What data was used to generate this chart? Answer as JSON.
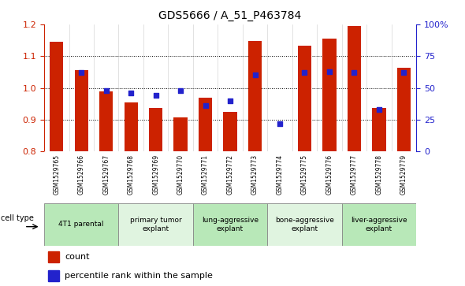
{
  "title": "GDS5666 / A_51_P463784",
  "samples": [
    "GSM1529765",
    "GSM1529766",
    "GSM1529767",
    "GSM1529768",
    "GSM1529769",
    "GSM1529770",
    "GSM1529771",
    "GSM1529772",
    "GSM1529773",
    "GSM1529774",
    "GSM1529775",
    "GSM1529776",
    "GSM1529777",
    "GSM1529778",
    "GSM1529779"
  ],
  "count_values": [
    1.145,
    1.055,
    0.988,
    0.955,
    0.938,
    0.908,
    0.97,
    0.924,
    1.148,
    0.802,
    1.132,
    1.155,
    1.195,
    0.937,
    1.063
  ],
  "percentile_values": [
    null,
    62,
    48,
    46,
    44,
    48,
    36,
    40,
    60,
    22,
    62,
    63,
    62,
    33,
    62
  ],
  "cell_types": [
    {
      "label": "4T1 parental",
      "start": 0,
      "end": 3,
      "color": "#b8e8b8"
    },
    {
      "label": "primary tumor\nexplant",
      "start": 3,
      "end": 6,
      "color": "#e0f4e0"
    },
    {
      "label": "lung-aggressive\nexplant",
      "start": 6,
      "end": 9,
      "color": "#b8e8b8"
    },
    {
      "label": "bone-aggressive\nexplant",
      "start": 9,
      "end": 12,
      "color": "#e0f4e0"
    },
    {
      "label": "liver-aggressive\nexplant",
      "start": 12,
      "end": 15,
      "color": "#b8e8b8"
    }
  ],
  "ylim_left": [
    0.8,
    1.2
  ],
  "ylim_right": [
    0,
    100
  ],
  "yticks_left": [
    0.8,
    0.9,
    1.0,
    1.1,
    1.2
  ],
  "yticks_right": [
    0,
    25,
    50,
    75,
    100
  ],
  "ytick_labels_right": [
    "0",
    "25",
    "50",
    "75",
    "100%"
  ],
  "bar_color": "#cc2200",
  "dot_color": "#2222cc",
  "bar_width": 0.55,
  "dot_size": 18,
  "left_axis_color": "#cc2200",
  "right_axis_color": "#2222cc",
  "sample_bg_color": "#d0d0d0",
  "grid_color": "black"
}
